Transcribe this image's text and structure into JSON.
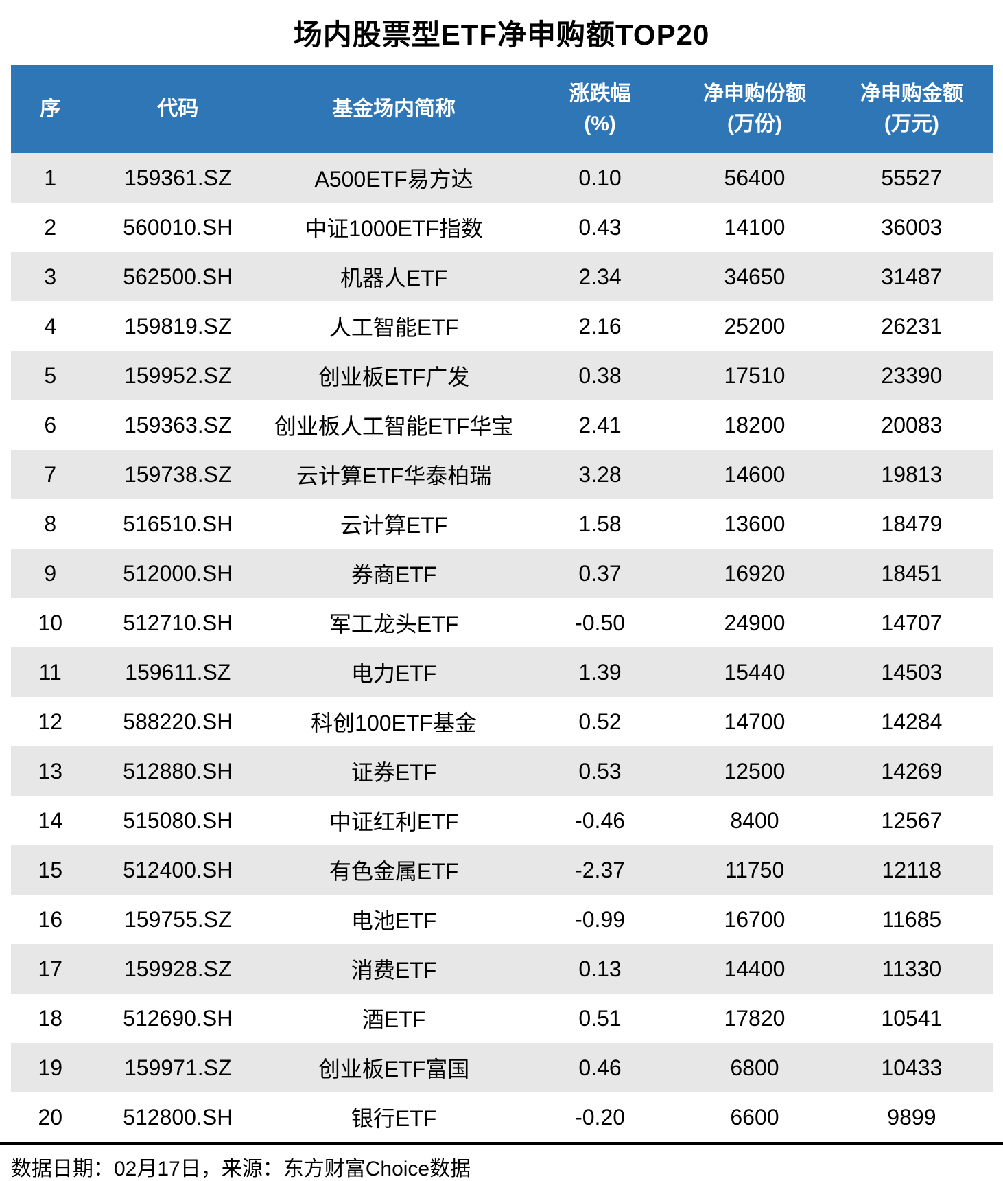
{
  "title": "场内股票型ETF净申购额TOP20",
  "colors": {
    "header_bg": "#2F76B7",
    "header_text": "#FFFFFF",
    "stripe_bg": "#E8E7E7",
    "body_text": "#000000",
    "rule": "#000000"
  },
  "chart_data": {
    "type": "table",
    "title": "场内股票型ETF净申购额TOP20",
    "columns": [
      "序",
      "代码",
      "基金场内简称",
      "涨跌幅(%)",
      "净申购份额(万份)",
      "净申购金额(万元)"
    ],
    "header_lines": [
      [
        "序",
        ""
      ],
      [
        "代码",
        ""
      ],
      [
        "基金场内简称",
        ""
      ],
      [
        "涨跌幅",
        "(%)"
      ],
      [
        "净申购份额",
        "(万份)"
      ],
      [
        "净申购金额",
        "(万元)"
      ]
    ],
    "rows": [
      [
        "1",
        "159361.SZ",
        "A500ETF易方达",
        "0.10",
        "56400",
        "55527"
      ],
      [
        "2",
        "560010.SH",
        "中证1000ETF指数",
        "0.43",
        "14100",
        "36003"
      ],
      [
        "3",
        "562500.SH",
        "机器人ETF",
        "2.34",
        "34650",
        "31487"
      ],
      [
        "4",
        "159819.SZ",
        "人工智能ETF",
        "2.16",
        "25200",
        "26231"
      ],
      [
        "5",
        "159952.SZ",
        "创业板ETF广发",
        "0.38",
        "17510",
        "23390"
      ],
      [
        "6",
        "159363.SZ",
        "创业板人工智能ETF华宝",
        "2.41",
        "18200",
        "20083"
      ],
      [
        "7",
        "159738.SZ",
        "云计算ETF华泰柏瑞",
        "3.28",
        "14600",
        "19813"
      ],
      [
        "8",
        "516510.SH",
        "云计算ETF",
        "1.58",
        "13600",
        "18479"
      ],
      [
        "9",
        "512000.SH",
        "券商ETF",
        "0.37",
        "16920",
        "18451"
      ],
      [
        "10",
        "512710.SH",
        "军工龙头ETF",
        "-0.50",
        "24900",
        "14707"
      ],
      [
        "11",
        "159611.SZ",
        "电力ETF",
        "1.39",
        "15440",
        "14503"
      ],
      [
        "12",
        "588220.SH",
        "科创100ETF基金",
        "0.52",
        "14700",
        "14284"
      ],
      [
        "13",
        "512880.SH",
        "证券ETF",
        "0.53",
        "12500",
        "14269"
      ],
      [
        "14",
        "515080.SH",
        "中证红利ETF",
        "-0.46",
        "8400",
        "12567"
      ],
      [
        "15",
        "512400.SH",
        "有色金属ETF",
        "-2.37",
        "11750",
        "12118"
      ],
      [
        "16",
        "159755.SZ",
        "电池ETF",
        "-0.99",
        "16700",
        "11685"
      ],
      [
        "17",
        "159928.SZ",
        "消费ETF",
        "0.13",
        "14400",
        "11330"
      ],
      [
        "18",
        "512690.SH",
        "酒ETF",
        "0.51",
        "17820",
        "10541"
      ],
      [
        "19",
        "159971.SZ",
        "创业板ETF富国",
        "0.46",
        "6800",
        "10433"
      ],
      [
        "20",
        "512800.SH",
        "银行ETF",
        "-0.20",
        "6600",
        "9899"
      ]
    ]
  },
  "footer": {
    "note": "数据日期：02月17日，来源：东方财富Choice数据"
  }
}
